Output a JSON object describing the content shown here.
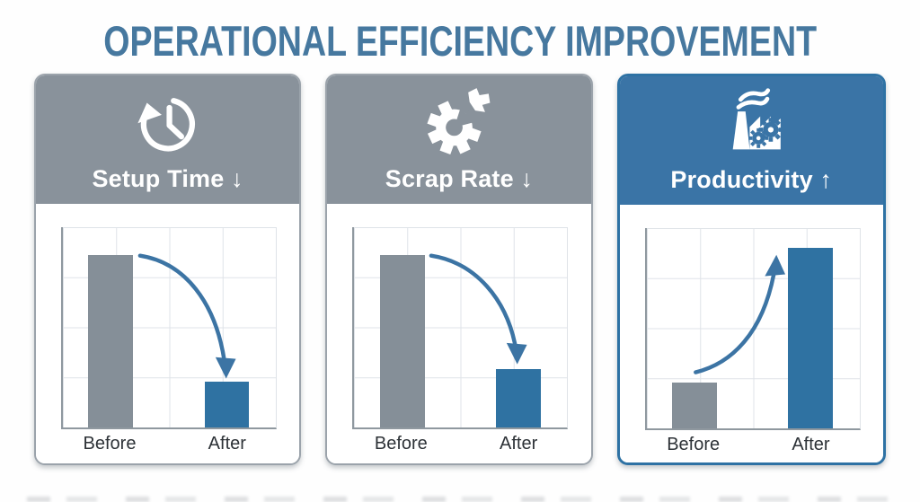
{
  "page": {
    "title": "OPERATIONAL EFFICIENCY IMPROVEMENT"
  },
  "colors": {
    "title_text": "#46789f",
    "header_gray": "#89929b",
    "header_blue": "#3a74a6",
    "bar_gray": "#858f98",
    "bar_blue": "#2f72a2",
    "arrow_blue": "#3c74a4",
    "axis_gray": "#8f989f",
    "grid_gray": "#dfe3e8",
    "label_text": "#2d3237",
    "card_border_gray": "#9ba3ab",
    "card_border_blue": "#2e72a4",
    "header_text": "#ffffff"
  },
  "cards": [
    {
      "label": "Setup Time ↓",
      "icon": "history-clock-icon",
      "theme": "gray",
      "trend": "down",
      "before_label": "Before",
      "after_label": "After",
      "before_value": 86,
      "after_value": 23
    },
    {
      "label": "Scrap Rate ↓",
      "icon": "broken-gear-icon",
      "theme": "gray",
      "trend": "down",
      "before_label": "Before",
      "after_label": "After",
      "before_value": 86,
      "after_value": 29
    },
    {
      "label": "Productivity ↑",
      "icon": "factory-icon",
      "theme": "blue",
      "trend": "up",
      "before_label": "Before",
      "after_label": "After",
      "before_value": 23,
      "after_value": 90
    }
  ],
  "chart_data": [
    {
      "type": "bar",
      "title": "Setup Time ↓",
      "categories": [
        "Before",
        "After"
      ],
      "values": [
        86,
        23
      ],
      "xlabel": "",
      "ylabel": "",
      "ylim": [
        0,
        100
      ],
      "grid": true,
      "legend": false,
      "series_colors": [
        "#858f98",
        "#2f72a2"
      ],
      "annotation": "curved arrow from Before top down to After top"
    },
    {
      "type": "bar",
      "title": "Scrap Rate ↓",
      "categories": [
        "Before",
        "After"
      ],
      "values": [
        86,
        29
      ],
      "xlabel": "",
      "ylabel": "",
      "ylim": [
        0,
        100
      ],
      "grid": true,
      "legend": false,
      "series_colors": [
        "#858f98",
        "#2f72a2"
      ],
      "annotation": "curved arrow from Before top down to After top"
    },
    {
      "type": "bar",
      "title": "Productivity ↑",
      "categories": [
        "Before",
        "After"
      ],
      "values": [
        23,
        90
      ],
      "xlabel": "",
      "ylabel": "",
      "ylim": [
        0,
        100
      ],
      "grid": true,
      "legend": false,
      "series_colors": [
        "#858f98",
        "#2f72a2"
      ],
      "annotation": "curved arrow from Before top up to After top"
    }
  ]
}
